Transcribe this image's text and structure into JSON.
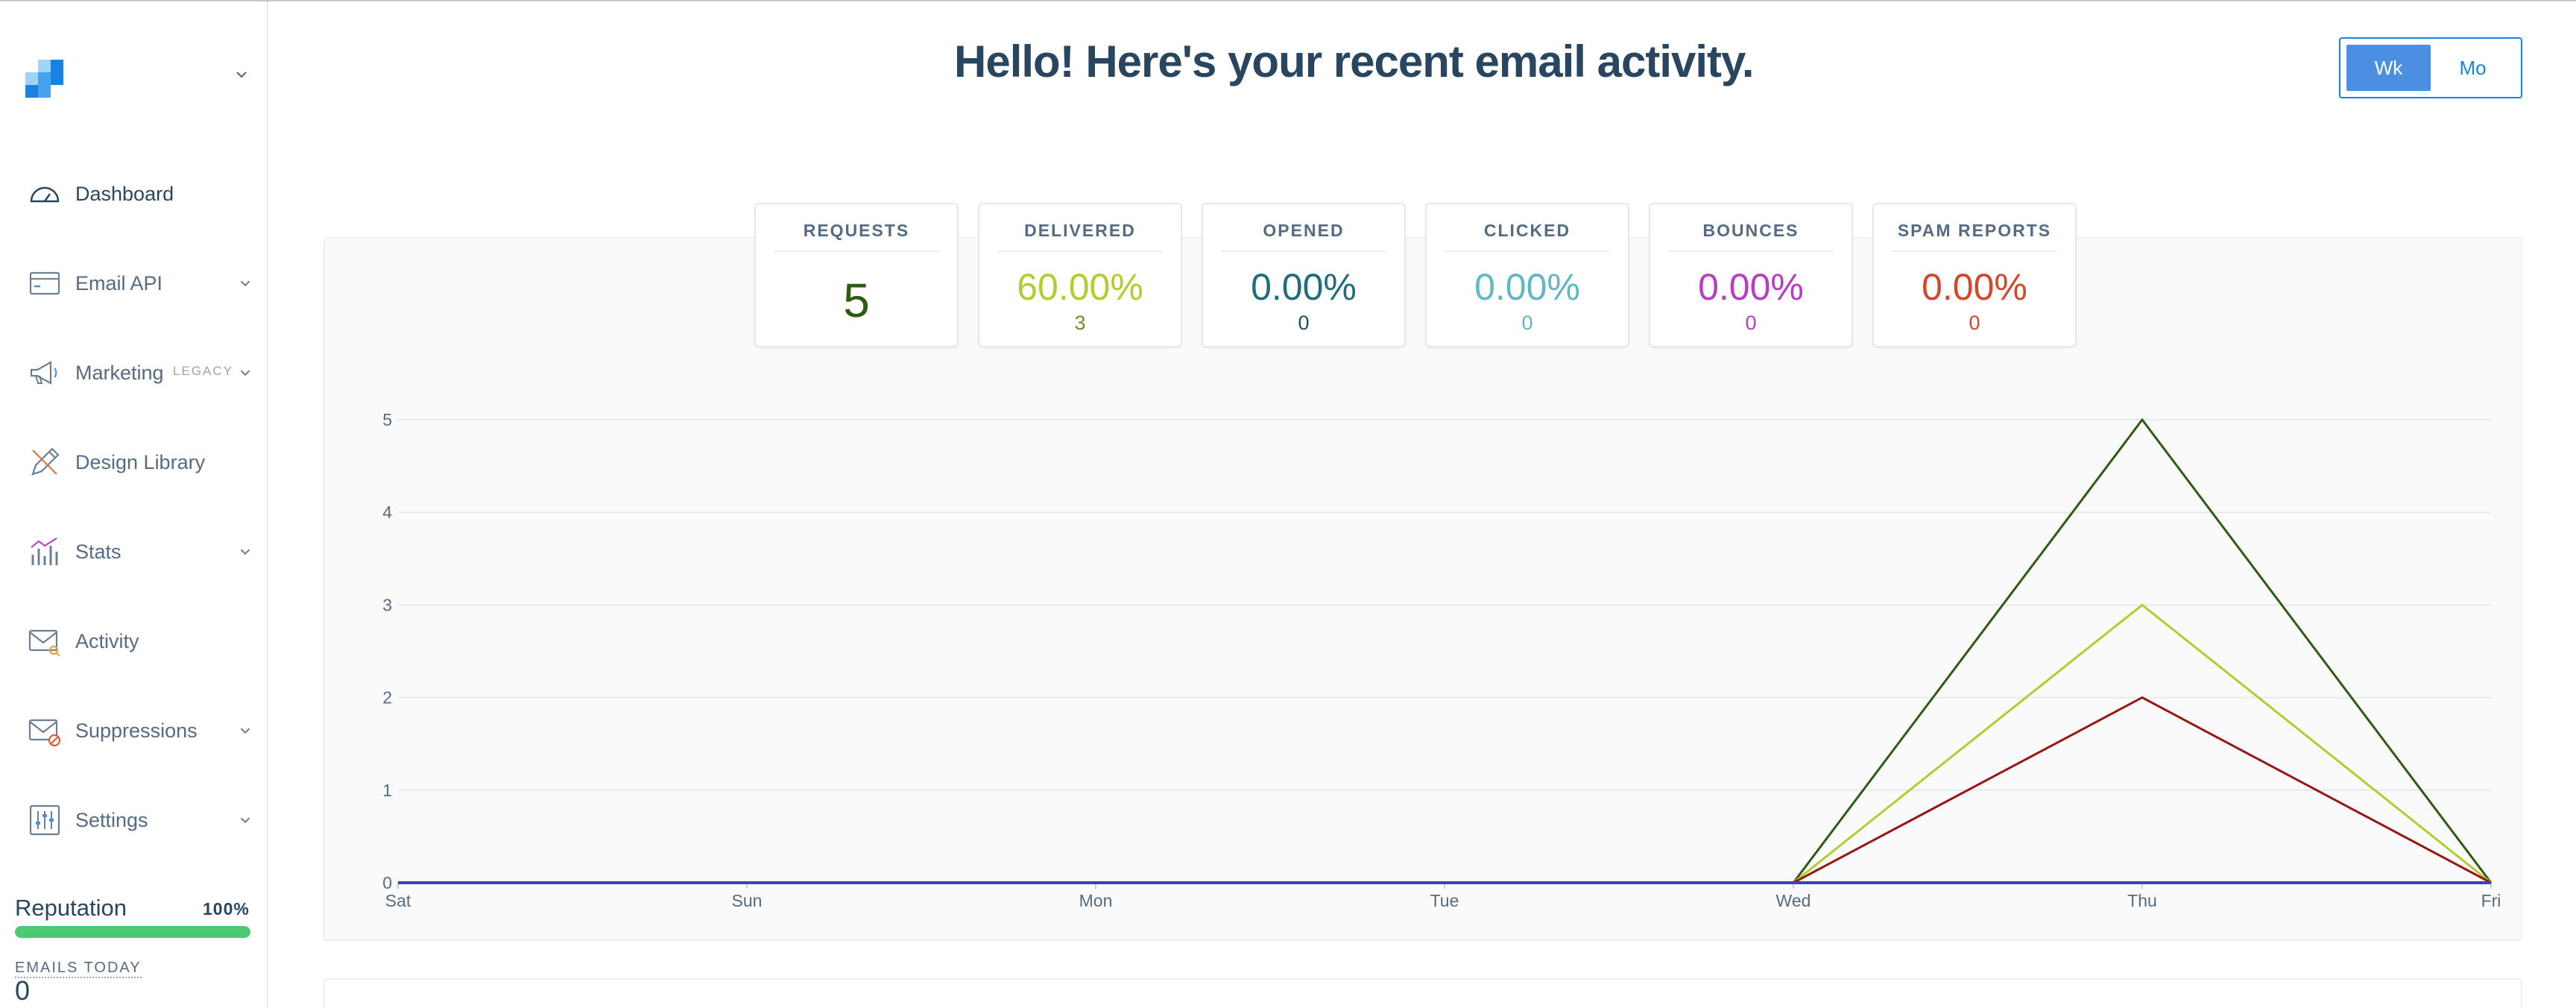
{
  "header": {
    "title": "Hello! Here's your recent email activity."
  },
  "range_toggle": {
    "options": [
      "Wk",
      "Mo"
    ],
    "selected": "Wk"
  },
  "sidebar": {
    "items": [
      {
        "label": "Dashboard",
        "icon": "dashboard-gauge-icon",
        "active": true
      },
      {
        "label": "Email API",
        "icon": "email-api-icon",
        "expandable": true
      },
      {
        "label": "Marketing",
        "badge": "LEGACY",
        "icon": "megaphone-icon",
        "expandable": true
      },
      {
        "label": "Design Library",
        "icon": "design-pencil-icon"
      },
      {
        "label": "Stats",
        "icon": "stats-bars-icon",
        "expandable": true
      },
      {
        "label": "Activity",
        "icon": "activity-envelope-icon"
      },
      {
        "label": "Suppressions",
        "icon": "suppressions-envelope-icon",
        "expandable": true
      },
      {
        "label": "Settings",
        "icon": "settings-sliders-icon",
        "expandable": true
      }
    ],
    "reputation": {
      "label": "Reputation",
      "percent_text": "100%",
      "value": 100,
      "color": "#4dc974"
    },
    "emails_today": {
      "label": "EMAILS TODAY",
      "value": "0"
    }
  },
  "stats": [
    {
      "title": "REQUESTS",
      "value": "5",
      "color": "#2e5b14"
    },
    {
      "title": "DELIVERED",
      "value": "60.00%",
      "count": "3",
      "color": "#b4cc2e"
    },
    {
      "title": "OPENED",
      "value": "0.00%",
      "count": "0",
      "color": "#1f6f7a"
    },
    {
      "title": "CLICKED",
      "value": "0.00%",
      "count": "0",
      "color": "#5fb8c2"
    },
    {
      "title": "BOUNCES",
      "value": "0.00%",
      "count": "0",
      "color": "#b83cc4"
    },
    {
      "title": "SPAM REPORTS",
      "value": "0.00%",
      "count": "0",
      "color": "#d4472a"
    }
  ],
  "chart_data": {
    "type": "line",
    "categories": [
      "Sat",
      "Sun",
      "Mon",
      "Tue",
      "Wed",
      "Thu",
      "Fri"
    ],
    "ylim": [
      0,
      5
    ],
    "yticks": [
      "0",
      "1",
      "2",
      "3",
      "4",
      "5"
    ],
    "grid": true,
    "series": [
      {
        "values": [
          0,
          0,
          0,
          0,
          0,
          5,
          0
        ],
        "color": "#2e5b14"
      },
      {
        "values": [
          0,
          0,
          0,
          0,
          0,
          3,
          0
        ],
        "color": "#b4cc2e"
      },
      {
        "values": [
          0,
          0,
          0,
          0,
          0,
          2,
          0
        ],
        "color": "#9b1414"
      },
      {
        "values": [
          0,
          0,
          0,
          0,
          0,
          0,
          0
        ],
        "color": "#3f3fc4"
      }
    ]
  }
}
